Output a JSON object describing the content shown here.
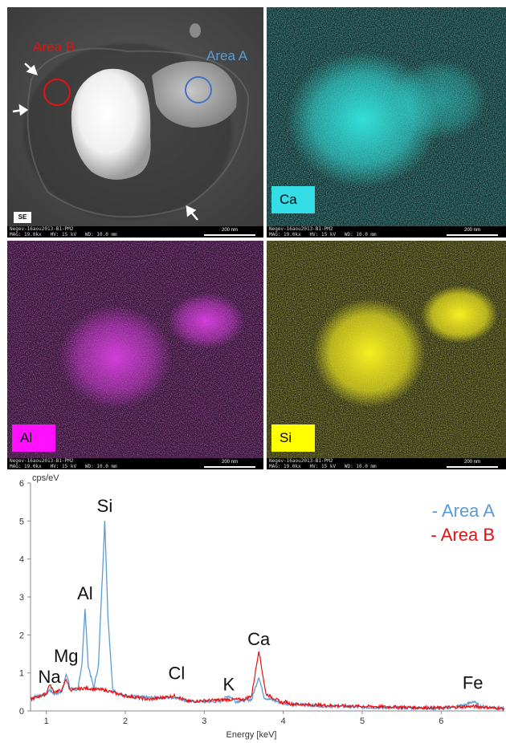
{
  "panels": {
    "se": {
      "tag": "SE",
      "area_a": "Area A",
      "area_b": "Area B",
      "footer_line1": "Negev-16aou2013-B1-PM2",
      "footer_line2": "MAG: 19.0kx   HV: 15 kV   WD: 10.0 mm",
      "scale": "200 nm"
    },
    "ca": {
      "tag": "Ca",
      "color": "#33e6e0",
      "tag_bg": "#33dde6",
      "footer_line1": "Negev-16aou2013-B1-PM2",
      "footer_line2": "MAG: 19.0kx   HV: 15 kV   WD: 10.0 mm",
      "scale": "200 nm"
    },
    "al": {
      "tag": "Al",
      "color": "#e040e8",
      "tag_bg": "#ff10ff",
      "footer_line1": "Negev-16aou2013-B1-PM2",
      "footer_line2": "MAG: 19.0kx   HV: 15 kV   WD: 10.0 mm",
      "scale": "200 nm"
    },
    "si": {
      "tag": "Si",
      "color": "#e8e020",
      "tag_bg": "#ffff00",
      "footer_line1": "Negev-16aou2013-B1-PM2",
      "footer_line2": "MAG: 19.0kx   HV: 15 kV   WD: 10.0 mm",
      "scale": "200 nm"
    }
  },
  "colors": {
    "area_a": "#5b9bd5",
    "area_b": "#e81010"
  },
  "chart_data": {
    "type": "line",
    "ylabel": "cps/eV",
    "xlabel": "Energy [keV]",
    "xlim": [
      0.8,
      6.8
    ],
    "ylim": [
      0,
      6
    ],
    "x_ticks": [
      1,
      2,
      3,
      4,
      5,
      6
    ],
    "y_ticks": [
      0,
      1,
      2,
      3,
      4,
      5,
      6
    ],
    "legend_position": "top-right",
    "series": [
      {
        "name": "Area A",
        "legend_text": "- Area A",
        "color": "#5b9bd5",
        "points": [
          [
            0.8,
            0.35
          ],
          [
            1.0,
            0.45
          ],
          [
            1.04,
            0.55
          ],
          [
            1.1,
            0.45
          ],
          [
            1.2,
            0.5
          ],
          [
            1.25,
            1.0
          ],
          [
            1.3,
            0.6
          ],
          [
            1.4,
            0.55
          ],
          [
            1.45,
            1.2
          ],
          [
            1.49,
            2.7
          ],
          [
            1.53,
            1.2
          ],
          [
            1.6,
            0.6
          ],
          [
            1.66,
            1.2
          ],
          [
            1.74,
            5.0
          ],
          [
            1.78,
            2.5
          ],
          [
            1.84,
            0.6
          ],
          [
            1.9,
            0.45
          ],
          [
            2.0,
            0.4
          ],
          [
            2.3,
            0.35
          ],
          [
            2.62,
            0.35
          ],
          [
            2.65,
            0.35
          ],
          [
            2.8,
            0.25
          ],
          [
            3.2,
            0.25
          ],
          [
            3.31,
            0.4
          ],
          [
            3.4,
            0.25
          ],
          [
            3.6,
            0.3
          ],
          [
            3.69,
            0.9
          ],
          [
            3.76,
            0.35
          ],
          [
            4.0,
            0.2
          ],
          [
            4.02,
            0.2
          ],
          [
            4.1,
            0.18
          ],
          [
            4.5,
            0.13
          ],
          [
            5.0,
            0.1
          ],
          [
            5.5,
            0.08
          ],
          [
            6.0,
            0.07
          ],
          [
            6.3,
            0.15
          ],
          [
            6.4,
            0.25
          ],
          [
            6.5,
            0.12
          ],
          [
            6.8,
            0.06
          ]
        ]
      },
      {
        "name": "Area B",
        "legend_text": "- Area B",
        "color": "#e81010",
        "points": [
          [
            0.8,
            0.3
          ],
          [
            1.0,
            0.45
          ],
          [
            1.04,
            0.7
          ],
          [
            1.1,
            0.5
          ],
          [
            1.2,
            0.55
          ],
          [
            1.25,
            0.85
          ],
          [
            1.3,
            0.55
          ],
          [
            1.49,
            0.6
          ],
          [
            1.74,
            0.55
          ],
          [
            2.0,
            0.4
          ],
          [
            2.3,
            0.3
          ],
          [
            2.62,
            0.4
          ],
          [
            2.8,
            0.25
          ],
          [
            3.31,
            0.3
          ],
          [
            3.5,
            0.3
          ],
          [
            3.6,
            0.4
          ],
          [
            3.69,
            1.6
          ],
          [
            3.78,
            0.45
          ],
          [
            4.0,
            0.2
          ],
          [
            4.02,
            0.25
          ],
          [
            4.1,
            0.18
          ],
          [
            4.5,
            0.15
          ],
          [
            5.0,
            0.12
          ],
          [
            5.5,
            0.1
          ],
          [
            6.0,
            0.08
          ],
          [
            6.4,
            0.12
          ],
          [
            6.8,
            0.06
          ]
        ]
      }
    ],
    "annotations": [
      {
        "text": "Na",
        "x": 1.04,
        "y": 0.65
      },
      {
        "text": "Mg",
        "x": 1.25,
        "y": 1.2
      },
      {
        "text": "Al",
        "x": 1.49,
        "y": 2.85
      },
      {
        "text": "Si",
        "x": 1.74,
        "y": 5.15
      },
      {
        "text": "Cl",
        "x": 2.65,
        "y": 0.75
      },
      {
        "text": "K",
        "x": 3.31,
        "y": 0.45
      },
      {
        "text": "Ca",
        "x": 3.69,
        "y": 1.65
      },
      {
        "text": "Fe",
        "x": 6.4,
        "y": 0.5
      }
    ]
  }
}
